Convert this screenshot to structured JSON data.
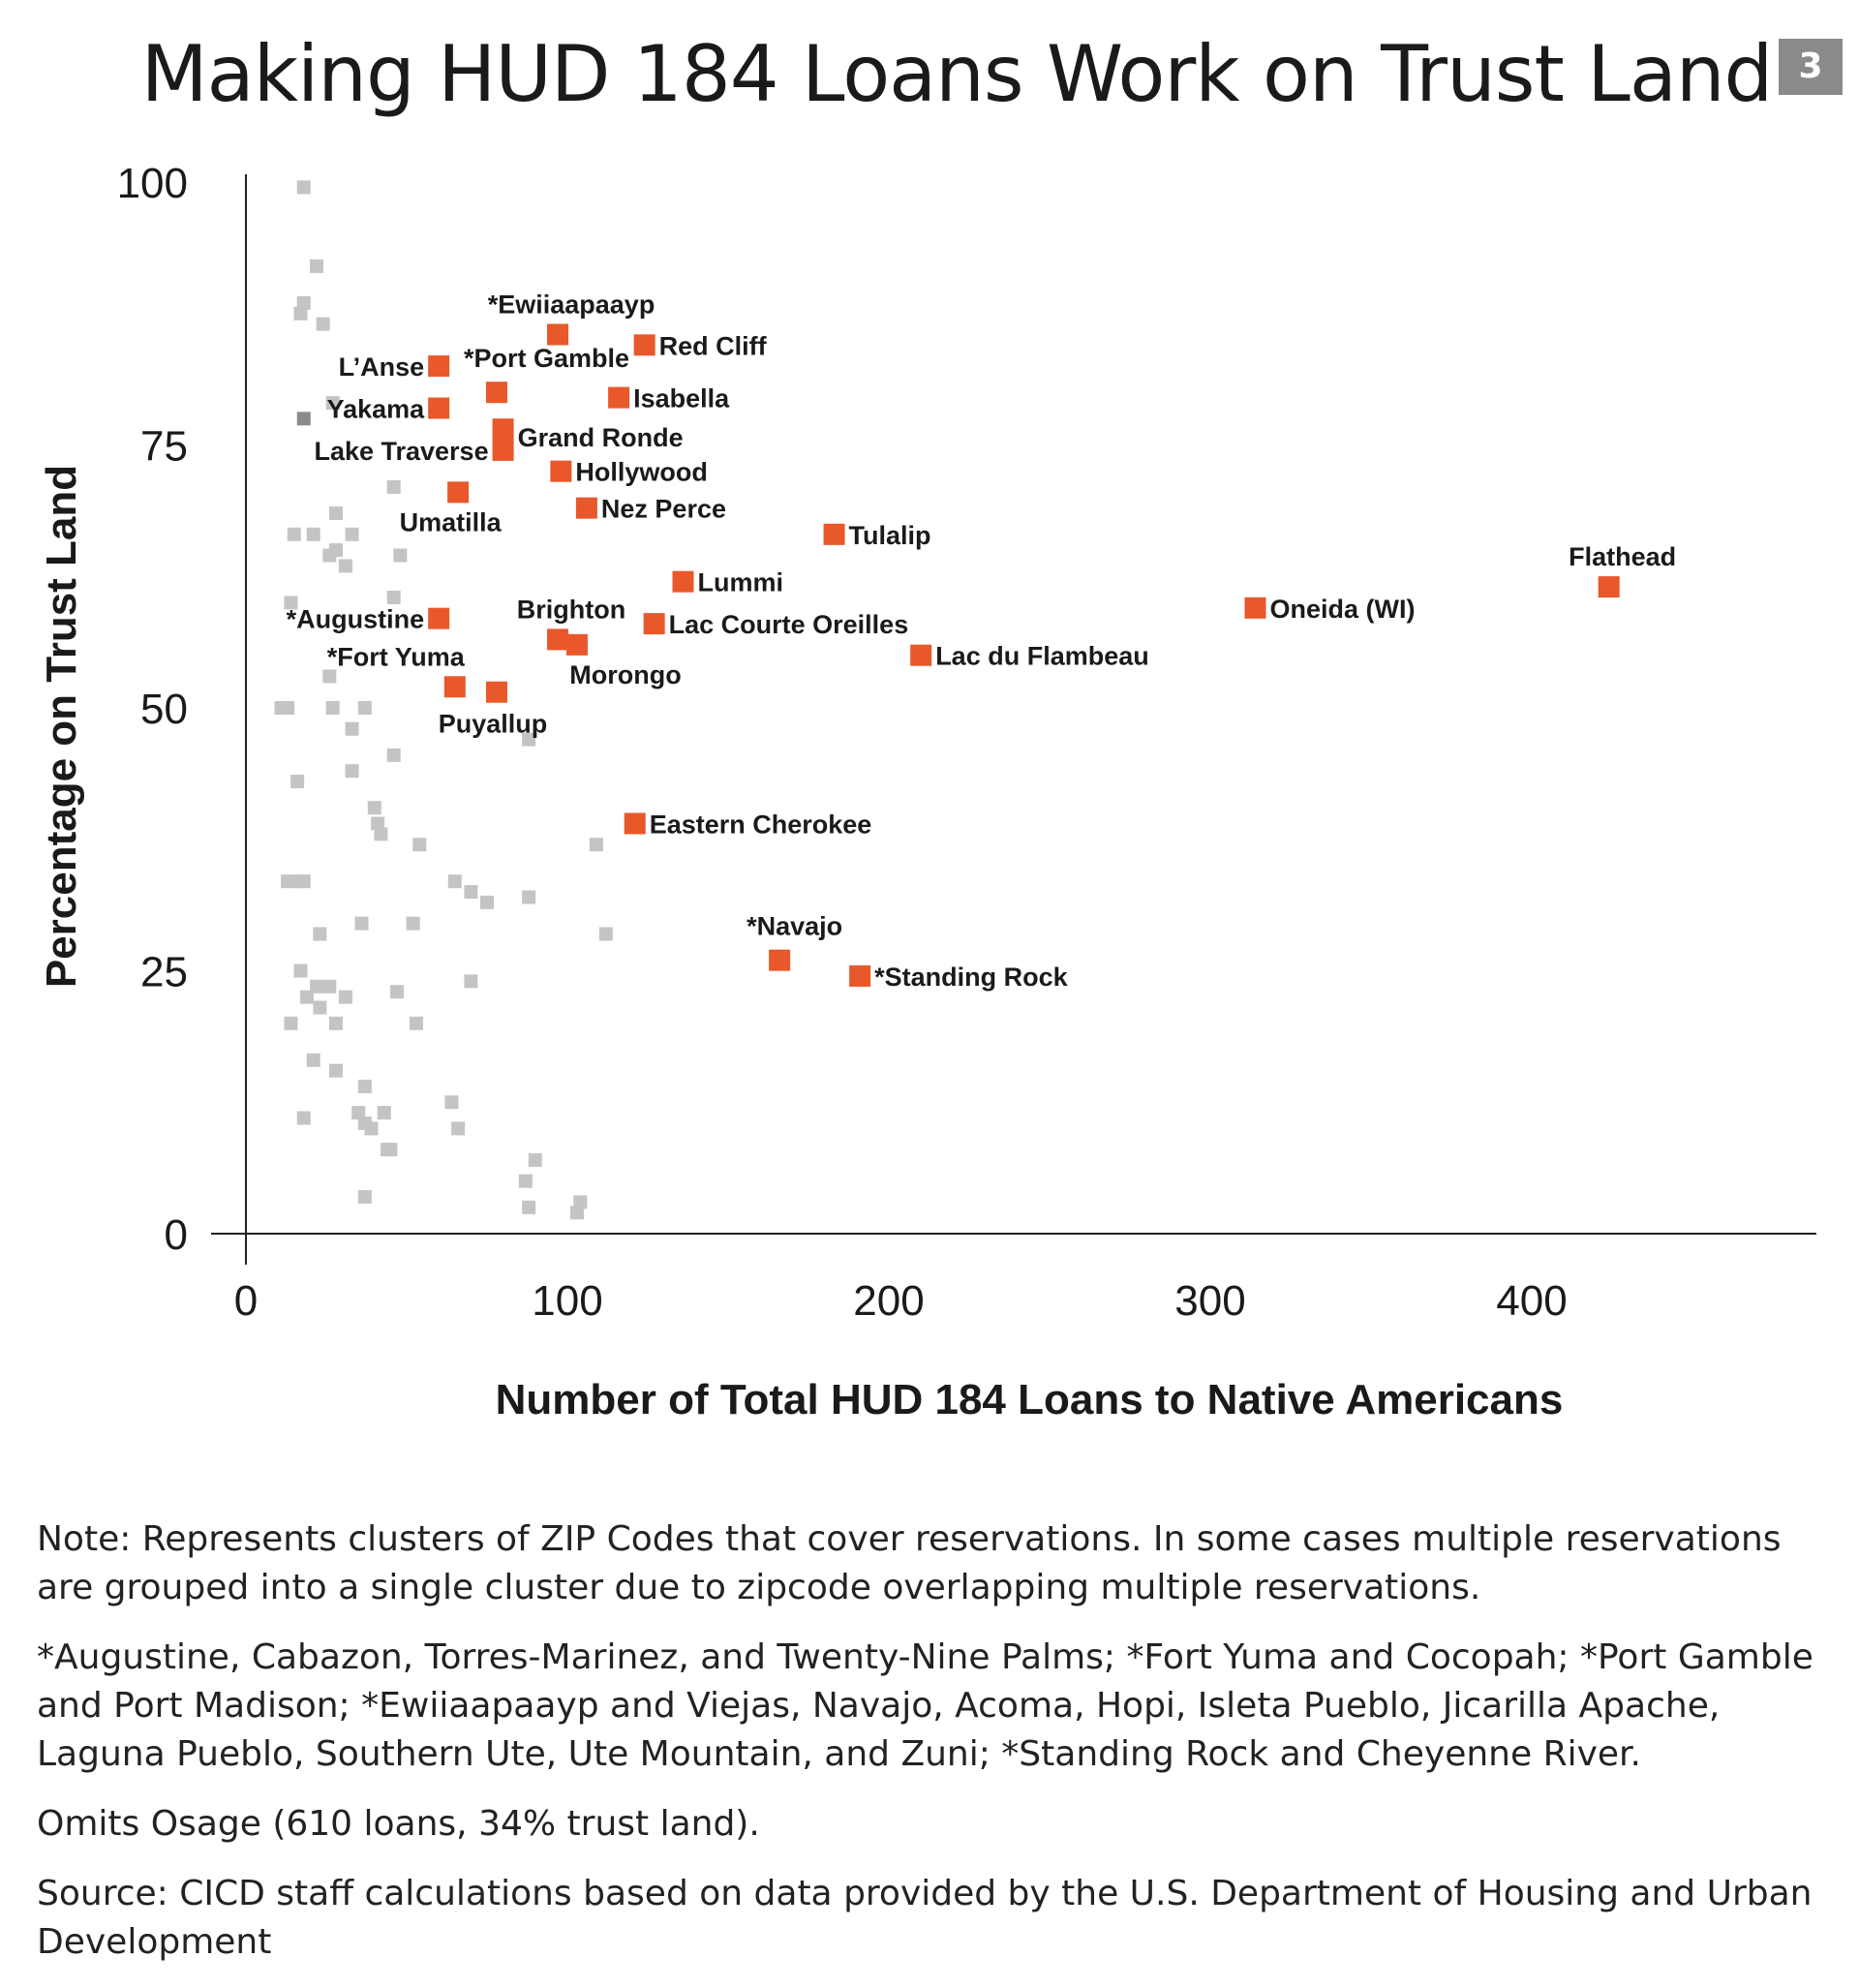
{
  "page": {
    "title": "Making HUD 184 Loans Work on Trust Land",
    "page_number": "3"
  },
  "chart_data": {
    "type": "scatter",
    "xlabel": "Number of Total HUD 184 Loans to Native Americans",
    "ylabel": "Percentage on Trust Land",
    "xlim": [
      0,
      480
    ],
    "ylim": [
      0,
      100
    ],
    "x_ticks": [
      0,
      100,
      200,
      300,
      400
    ],
    "y_ticks": [
      0,
      25,
      50,
      75,
      100
    ],
    "grid": false,
    "colors": {
      "highlight": "#e8582a",
      "other": "#c4c4c4",
      "other_dark": "#8a8a8a",
      "axis": "#222222"
    },
    "highlighted": [
      {
        "label": "*Ewiiaapaayp",
        "x": 97,
        "y": 85.5,
        "anchor": "above"
      },
      {
        "label": "Red Cliff",
        "x": 124,
        "y": 84.5,
        "anchor": "right"
      },
      {
        "label": "L’Anse",
        "x": 60,
        "y": 82.5,
        "anchor": "left"
      },
      {
        "label": "*Port Gamble",
        "x": 78,
        "y": 80,
        "anchor": "above-right"
      },
      {
        "label": "Isabella",
        "x": 116,
        "y": 79.5,
        "anchor": "right"
      },
      {
        "label": "Yakama",
        "x": 60,
        "y": 78.5,
        "anchor": "left"
      },
      {
        "label": "Grand Ronde",
        "x": 80,
        "y": 76.5,
        "anchor": "right-low"
      },
      {
        "label": "Lake Traverse",
        "x": 80,
        "y": 74.5,
        "anchor": "left"
      },
      {
        "label": "Hollywood",
        "x": 98,
        "y": 72.5,
        "anchor": "right"
      },
      {
        "label": "Umatilla",
        "x": 66,
        "y": 70.5,
        "anchor": "below-left"
      },
      {
        "label": "Nez Perce",
        "x": 106,
        "y": 69,
        "anchor": "right"
      },
      {
        "label": "Tulalip",
        "x": 183,
        "y": 66.5,
        "anchor": "right"
      },
      {
        "label": "Flathead",
        "x": 424,
        "y": 61.5,
        "anchor": "above"
      },
      {
        "label": "Lummi",
        "x": 136,
        "y": 62,
        "anchor": "right"
      },
      {
        "label": "Oneida (WI)",
        "x": 314,
        "y": 59.5,
        "anchor": "right"
      },
      {
        "label": "*Augustine",
        "x": 60,
        "y": 58.5,
        "anchor": "left"
      },
      {
        "label": "Lac Courte Oreilles",
        "x": 127,
        "y": 58,
        "anchor": "right"
      },
      {
        "label": "Brighton",
        "x": 97,
        "y": 56.5,
        "anchor": "above"
      },
      {
        "label": "Morongo",
        "x": 103,
        "y": 56,
        "anchor": "below-right"
      },
      {
        "label": "Lac du Flambeau",
        "x": 210,
        "y": 55,
        "anchor": "right"
      },
      {
        "label": "*Fort Yuma",
        "x": 65,
        "y": 52,
        "anchor": "above-left"
      },
      {
        "label": "Puyallup",
        "x": 78,
        "y": 51.5,
        "anchor": "below"
      },
      {
        "label": "Eastern Cherokee",
        "x": 121,
        "y": 39,
        "anchor": "right"
      },
      {
        "label": "*Navajo",
        "x": 166,
        "y": 26,
        "anchor": "above-right"
      },
      {
        "label": "*Standing Rock",
        "x": 191,
        "y": 24.5,
        "anchor": "right"
      }
    ],
    "other_points": [
      [
        18,
        99.5
      ],
      [
        22,
        92
      ],
      [
        18,
        88.5
      ],
      [
        17,
        87.5
      ],
      [
        24,
        86.5
      ],
      [
        27,
        79
      ],
      [
        46,
        71
      ],
      [
        28,
        68.5
      ],
      [
        15,
        66.5
      ],
      [
        21,
        66.5
      ],
      [
        33,
        66.5
      ],
      [
        28,
        65
      ],
      [
        26,
        64.5
      ],
      [
        48,
        64.5
      ],
      [
        31,
        63.5
      ],
      [
        46,
        60.5
      ],
      [
        14,
        60
      ],
      [
        26,
        53
      ],
      [
        11,
        50
      ],
      [
        13,
        50
      ],
      [
        27,
        50
      ],
      [
        37,
        50
      ],
      [
        33,
        48
      ],
      [
        88,
        47
      ],
      [
        46,
        45.5
      ],
      [
        33,
        44
      ],
      [
        16,
        43
      ],
      [
        40,
        40.5
      ],
      [
        41,
        39
      ],
      [
        42,
        38
      ],
      [
        54,
        37
      ],
      [
        109,
        37
      ],
      [
        13,
        33.5
      ],
      [
        16,
        33.5
      ],
      [
        18,
        33.5
      ],
      [
        65,
        33.5
      ],
      [
        70,
        32.5
      ],
      [
        75,
        31.5
      ],
      [
        88,
        32
      ],
      [
        36,
        29.5
      ],
      [
        52,
        29.5
      ],
      [
        23,
        28.5
      ],
      [
        112,
        28.5
      ],
      [
        17,
        25
      ],
      [
        70,
        24
      ],
      [
        22,
        23.5
      ],
      [
        26,
        23.5
      ],
      [
        19,
        22.5
      ],
      [
        31,
        22.5
      ],
      [
        47,
        23
      ],
      [
        23,
        21.5
      ],
      [
        14,
        20
      ],
      [
        28,
        20
      ],
      [
        53,
        20
      ],
      [
        21,
        16.5
      ],
      [
        28,
        15.5
      ],
      [
        37,
        14
      ],
      [
        64,
        12.5
      ],
      [
        18,
        11
      ],
      [
        35,
        11.5
      ],
      [
        43,
        11.5
      ],
      [
        37,
        10.5
      ],
      [
        39,
        10
      ],
      [
        66,
        10
      ],
      [
        44,
        8
      ],
      [
        45,
        8
      ],
      [
        90,
        7
      ],
      [
        87,
        5
      ],
      [
        37,
        3.5
      ],
      [
        104,
        3
      ],
      [
        88,
        2.5
      ],
      [
        103,
        2
      ]
    ],
    "other_points_dark": [
      [
        18,
        77.5
      ]
    ]
  },
  "notes": [
    "Note: Represents clusters of ZIP Codes that cover reservations. In some cases multiple reservations are grouped into a single cluster due to zipcode overlapping multiple reservations.",
    "*Augustine, Cabazon, Torres-Marinez, and Twenty-Nine Palms; *Fort Yuma and Cocopah; *Port Gamble and Port Madison; *Ewiiaapaayp and Viejas, Navajo, Acoma, Hopi, Isleta Pueblo, Jicarilla Apache, Laguna Pueblo, Southern Ute, Ute Mountain, and Zuni; *Standing Rock and Cheyenne River.",
    "Omits Osage (610 loans, 34% trust land).",
    "Source: CICD staff calculations based on data provided by the U.S. Department of Housing and Urban Development"
  ]
}
